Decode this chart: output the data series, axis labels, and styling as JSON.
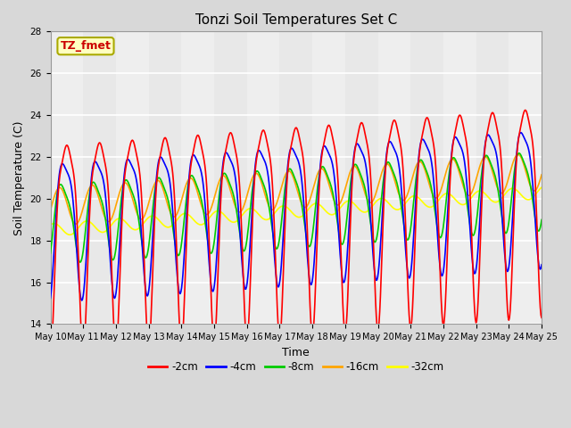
{
  "title": "Tonzi Soil Temperatures Set C",
  "xlabel": "Time",
  "ylabel": "Soil Temperature (C)",
  "annotation": "TZ_fmet",
  "ylim": [
    14,
    28
  ],
  "yticks": [
    14,
    16,
    18,
    20,
    22,
    24,
    26,
    28
  ],
  "series": {
    "-2cm": {
      "color": "#FF0000",
      "lw": 1.2
    },
    "-4cm": {
      "color": "#0000FF",
      "lw": 1.2
    },
    "-8cm": {
      "color": "#00CC00",
      "lw": 1.2
    },
    "-16cm": {
      "color": "#FFA500",
      "lw": 1.2
    },
    "-32cm": {
      "color": "#FFFF00",
      "lw": 1.2
    }
  },
  "background_color": "#D8D8D8",
  "plot_bg_color": "#E8E8E8",
  "grid_color": "#FFFFFF",
  "ann_facecolor": "#FFFFC0",
  "ann_edgecolor": "#AAAA00",
  "ann_textcolor": "#CC0000"
}
